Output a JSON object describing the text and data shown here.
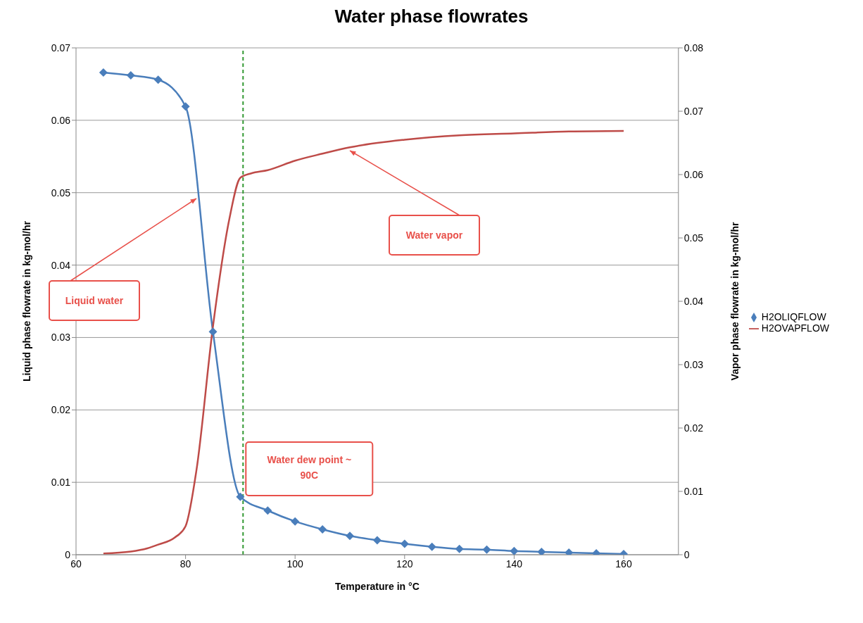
{
  "chart_data": {
    "type": "line",
    "title": "Water phase flowrates",
    "xlabel": "Temperature in °C",
    "ylabel": "Liquid phase flowrate in kg-mol/hr",
    "y2label": "Vapor phase flowrate in kg-mol/hr",
    "xlim": [
      60,
      170
    ],
    "xticks": [
      60,
      80,
      100,
      120,
      140,
      160
    ],
    "ylim": [
      0,
      0.07
    ],
    "yticks": [
      0,
      0.01,
      0.02,
      0.03,
      0.04,
      0.05,
      0.06,
      0.07
    ],
    "y2lim": [
      0,
      0.08
    ],
    "y2ticks": [
      0,
      0.01,
      0.02,
      0.03,
      0.04,
      0.05,
      0.06,
      0.07,
      0.08
    ],
    "grid": "y",
    "legend": "right",
    "series": [
      {
        "name": "H2OLIQFLOW",
        "color": "#4a7ebb",
        "marker": "diamond",
        "x": [
          65,
          70,
          75,
          80,
          85,
          90,
          95,
          100,
          105,
          110,
          115,
          120,
          125,
          130,
          135,
          140,
          145,
          150,
          155,
          160
        ],
        "values": [
          0.0666,
          0.0662,
          0.0656,
          0.0619,
          0.0308,
          0.008,
          0.0061,
          0.0046,
          0.0035,
          0.0026,
          0.002,
          0.0015,
          0.0011,
          0.0008,
          0.0007,
          0.0005,
          0.0004,
          0.0003,
          0.0002,
          0.0001
        ]
      },
      {
        "name": "H2OVAPFLOW",
        "color": "#be4b48",
        "marker": "none",
        "axis": "y2",
        "x": [
          65,
          70,
          73,
          75,
          78,
          80,
          82,
          85,
          88,
          90,
          92,
          95,
          100,
          105,
          110,
          120,
          130,
          140,
          150,
          160
        ],
        "values": [
          0.0002,
          0.0005,
          0.001,
          0.0016,
          0.0027,
          0.0045,
          0.0134,
          0.036,
          0.053,
          0.0595,
          0.0602,
          0.0607,
          0.0622,
          0.0633,
          0.0643,
          0.0655,
          0.0662,
          0.0665,
          0.0668,
          0.0669
        ]
      }
    ],
    "ref_lines": [
      {
        "axis": "x",
        "value": 90.5,
        "label": "Water dew point ~ 90C",
        "color": "#339933",
        "line_style": "dashed"
      }
    ],
    "annotations": [
      "Liquid water",
      "Water vapor"
    ]
  }
}
